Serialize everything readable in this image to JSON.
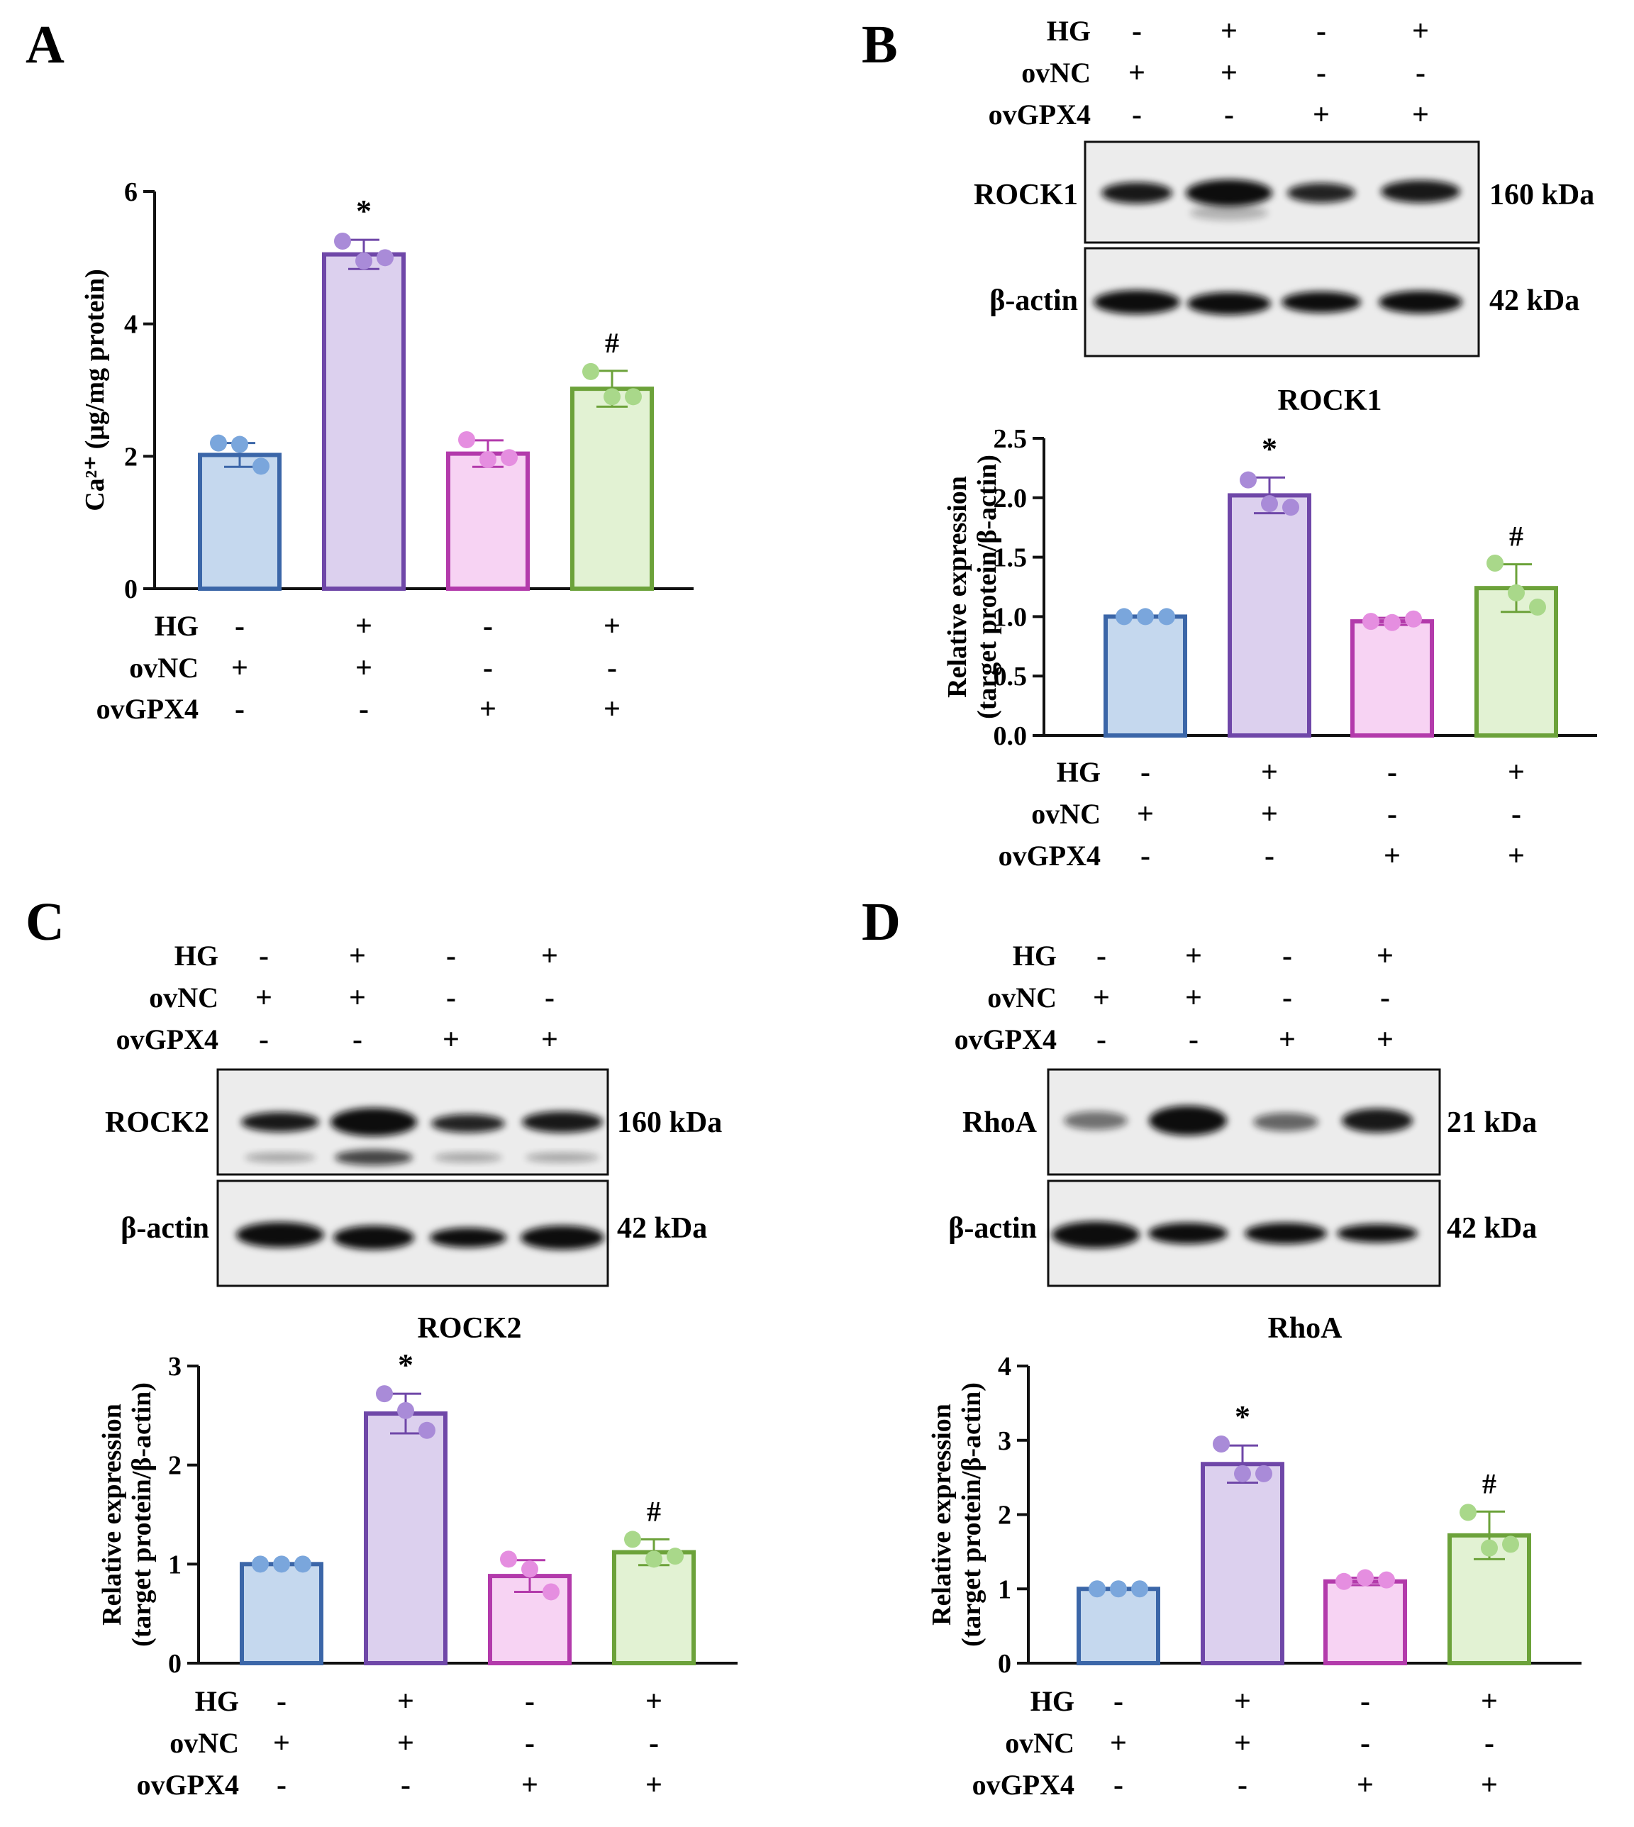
{
  "conditions": {
    "rows": [
      {
        "label": "HG",
        "signs": [
          "-",
          "+",
          "-",
          "+"
        ]
      },
      {
        "label": "ovNC",
        "signs": [
          "+",
          "+",
          "-",
          "-"
        ]
      },
      {
        "label": "ovGPX4",
        "signs": [
          "-",
          "-",
          "+",
          "+"
        ]
      }
    ]
  },
  "colors": {
    "fills": [
      "#c5d8ee",
      "#dcd0ee",
      "#f7d3f3",
      "#e2f2d3"
    ],
    "strokes": [
      "#3b66a8",
      "#6f47a8",
      "#b33aab",
      "#6ca23a"
    ],
    "dots": [
      "#7aa6dc",
      "#a98bd8",
      "#e58ee0",
      "#a9d88a"
    ]
  },
  "panels": {
    "A": {
      "letter": "A"
    },
    "B": {
      "letter": "B",
      "blots": [
        {
          "name": "ROCK1",
          "size": "160 kDa"
        },
        {
          "name": "β-actin",
          "size": "42 kDa"
        }
      ]
    },
    "C": {
      "letter": "C",
      "blots": [
        {
          "name": "ROCK2",
          "size": "160 kDa"
        },
        {
          "name": "β-actin",
          "size": "42 kDa"
        }
      ]
    },
    "D": {
      "letter": "D",
      "blots": [
        {
          "name": "RhoA",
          "size": "21 kDa"
        },
        {
          "name": "β-actin",
          "size": "42 kDa"
        }
      ]
    }
  },
  "chart_data": [
    {
      "panel": "A",
      "type": "bar",
      "title": "",
      "ylabel": "Ca²⁺ (μg/mg protein)",
      "ylim": [
        0,
        6
      ],
      "yticks": [
        "0",
        "2",
        "4",
        "6"
      ],
      "categories": [
        "HG-/ovNC+/ovGPX4-",
        "HG+/ovNC+/ovGPX4-",
        "HG-/ovNC-/ovGPX4+",
        "HG+/ovNC-/ovGPX4+"
      ],
      "values": [
        2.02,
        5.05,
        2.04,
        3.02
      ],
      "errors": [
        0.18,
        0.22,
        0.2,
        0.27
      ],
      "points": [
        [
          2.2,
          2.18,
          1.85
        ],
        [
          5.25,
          4.95,
          5.0
        ],
        [
          2.25,
          1.95,
          1.98
        ],
        [
          3.28,
          2.9,
          2.9
        ]
      ],
      "annotations": [
        "",
        "*",
        "",
        "#"
      ]
    },
    {
      "panel": "B",
      "type": "bar",
      "title": "ROCK1",
      "ylabel": "Relative expression (target protein/β-actin)",
      "ylim": [
        0,
        2.5
      ],
      "yticks": [
        "0.0",
        "0.5",
        "1.0",
        "1.5",
        "2.0",
        "2.5"
      ],
      "categories": [
        "HG-/ovNC+/ovGPX4-",
        "HG+/ovNC+/ovGPX4-",
        "HG-/ovNC-/ovGPX4+",
        "HG+/ovNC-/ovGPX4+"
      ],
      "values": [
        1.0,
        2.02,
        0.96,
        1.24
      ],
      "errors": [
        0.0,
        0.15,
        0.03,
        0.2
      ],
      "points": [
        [
          1.0,
          1.0,
          1.0
        ],
        [
          2.15,
          1.95,
          1.92
        ],
        [
          0.96,
          0.95,
          0.98
        ],
        [
          1.45,
          1.2,
          1.08
        ]
      ],
      "annotations": [
        "",
        "*",
        "",
        "#"
      ]
    },
    {
      "panel": "C",
      "type": "bar",
      "title": "ROCK2",
      "ylabel": "Relative expression (target protein/β-actin)",
      "ylim": [
        0,
        3
      ],
      "yticks": [
        "0",
        "1",
        "2",
        "3"
      ],
      "categories": [
        "HG-/ovNC+/ovGPX4-",
        "HG+/ovNC+/ovGPX4-",
        "HG-/ovNC-/ovGPX4+",
        "HG+/ovNC-/ovGPX4+"
      ],
      "values": [
        1.0,
        2.52,
        0.88,
        1.12
      ],
      "errors": [
        0.0,
        0.2,
        0.16,
        0.13
      ],
      "points": [
        [
          1.0,
          1.0,
          1.0
        ],
        [
          2.72,
          2.55,
          2.35
        ],
        [
          1.05,
          0.95,
          0.72
        ],
        [
          1.25,
          1.05,
          1.08
        ]
      ],
      "annotations": [
        "",
        "*",
        "",
        "#"
      ]
    },
    {
      "panel": "D",
      "type": "bar",
      "title": "RhoA",
      "ylabel": "Relative expression (target protein/β-actin)",
      "ylim": [
        0,
        4
      ],
      "yticks": [
        "0",
        "1",
        "2",
        "3",
        "4"
      ],
      "categories": [
        "HG-/ovNC+/ovGPX4-",
        "HG+/ovNC+/ovGPX4-",
        "HG-/ovNC-/ovGPX4+",
        "HG+/ovNC-/ovGPX4+"
      ],
      "values": [
        1.0,
        2.68,
        1.1,
        1.72
      ],
      "errors": [
        0.0,
        0.25,
        0.05,
        0.32
      ],
      "points": [
        [
          1.0,
          1.0,
          1.0
        ],
        [
          2.95,
          2.55,
          2.55
        ],
        [
          1.1,
          1.15,
          1.12
        ],
        [
          2.03,
          1.55,
          1.6
        ]
      ],
      "annotations": [
        "",
        "*",
        "",
        "#"
      ]
    }
  ]
}
